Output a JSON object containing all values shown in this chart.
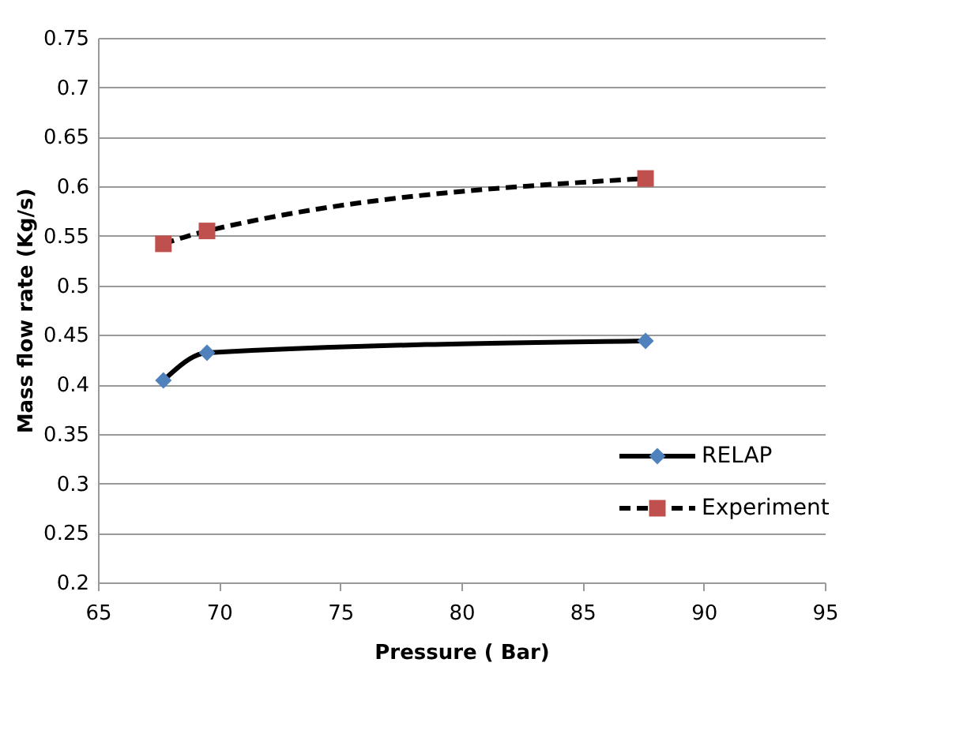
{
  "chart_data": {
    "type": "line",
    "xlabel": "Pressure ( Bar)",
    "ylabel": "Mass flow rate (Kg/s)",
    "x": [
      67.7,
      69.5,
      87.6
    ],
    "series": [
      {
        "name": "RELAP",
        "color": "#4f81bd",
        "values": [
          0.404,
          0.432,
          0.444
        ],
        "marker": "diamond",
        "line_style": "solid"
      },
      {
        "name": "Experiment",
        "color": "#c0504d",
        "values": [
          0.542,
          0.555,
          0.608
        ],
        "marker": "square",
        "line_style": "dashed"
      }
    ],
    "xlim": [
      65,
      95
    ],
    "xticks": [
      65,
      70,
      75,
      80,
      85,
      90,
      95
    ],
    "ylim": [
      0.2,
      0.75
    ],
    "yticks": [
      0.2,
      0.25,
      0.3,
      0.35,
      0.4,
      0.45,
      0.5,
      0.55,
      0.6,
      0.65,
      0.7,
      0.75
    ],
    "grid": "y",
    "legend": "bottom right"
  }
}
